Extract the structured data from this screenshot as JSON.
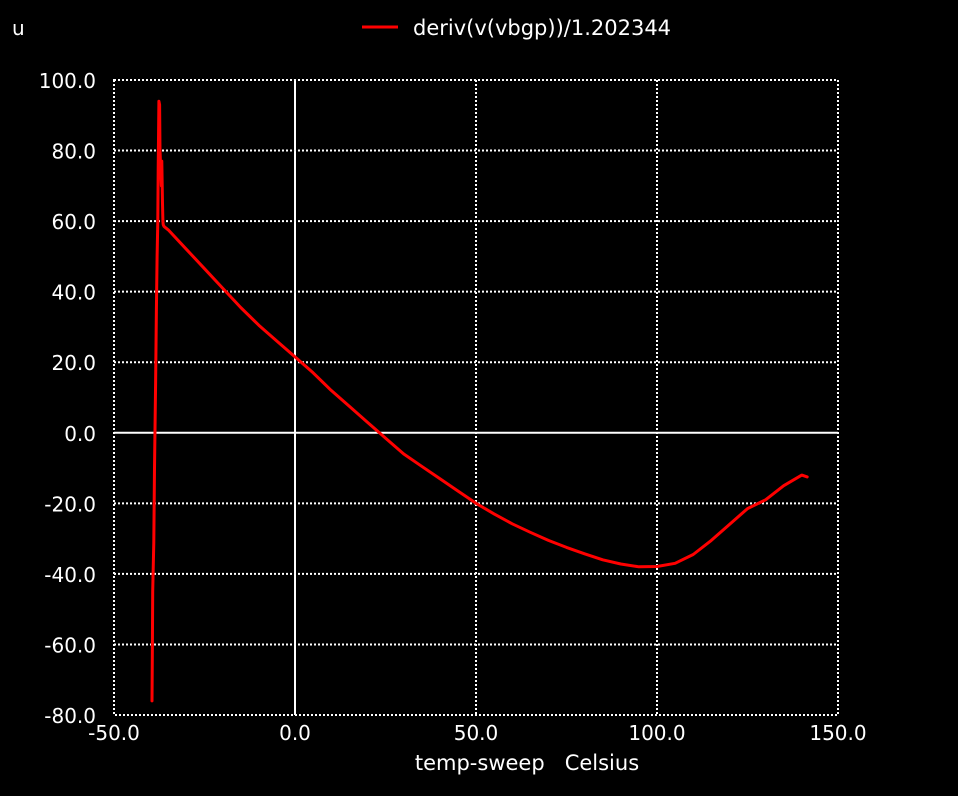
{
  "chart_data": {
    "type": "line",
    "unit_label": "u",
    "xlabel": "temp-sweep   Celsius",
    "xlim": [
      -50,
      150
    ],
    "ylim": [
      -80,
      100
    ],
    "x_ticks": [
      -50,
      0,
      50,
      100,
      150
    ],
    "x_tick_labels": [
      "-50.0",
      "0.0",
      "50.0",
      "100.0",
      "150.0"
    ],
    "y_ticks": [
      100,
      80,
      60,
      40,
      20,
      0,
      -20,
      -40,
      -60,
      -80
    ],
    "y_tick_labels": [
      "100.0",
      "80.0",
      "60.0",
      "40.0",
      "20.0",
      "0.0",
      "-20.0",
      "-40.0",
      "-60.0",
      "-80.0"
    ],
    "grid": true,
    "legend_position": "top-center",
    "colors": {
      "background": "#000000",
      "foreground": "#ffffff",
      "series": "#ff0000"
    },
    "series": [
      {
        "name": "deriv(v(vbgp))/1.202344",
        "x": [
          -39.5,
          -39.4,
          -39.3,
          -39.0,
          -38.8,
          -38.5,
          -38.3,
          -38.1,
          -37.9,
          -37.8,
          -37.6,
          -37.4,
          -37.3,
          -37.1,
          -36.9,
          -36.8,
          -36.6,
          -36.5,
          -36.4,
          -36.2,
          -35.0,
          -30,
          -25,
          -20,
          -15,
          -10,
          -5,
          0,
          5,
          10,
          15,
          20,
          25,
          30,
          35,
          40,
          45,
          50,
          55,
          60,
          65,
          70,
          75,
          80,
          85,
          90,
          95,
          100,
          105,
          110,
          115,
          120,
          125,
          130,
          135,
          140,
          141.5
        ],
        "y": [
          -76,
          -60,
          -45,
          -31,
          -10,
          14,
          35,
          50,
          60,
          75,
          94,
          93,
          80,
          75,
          70,
          77,
          65,
          60,
          59,
          58.5,
          57.5,
          52,
          46.5,
          41,
          35.5,
          30.5,
          26,
          21.5,
          17,
          12,
          7.5,
          3,
          -1.5,
          -6,
          -9.5,
          -13,
          -16.5,
          -20,
          -23,
          -25.8,
          -28.2,
          -30.5,
          -32.5,
          -34.3,
          -36.0,
          -37.2,
          -38.0,
          -37.9,
          -37.0,
          -34.5,
          -30.5,
          -26,
          -21.5,
          -19,
          -15,
          -12,
          -12.5
        ]
      }
    ]
  }
}
